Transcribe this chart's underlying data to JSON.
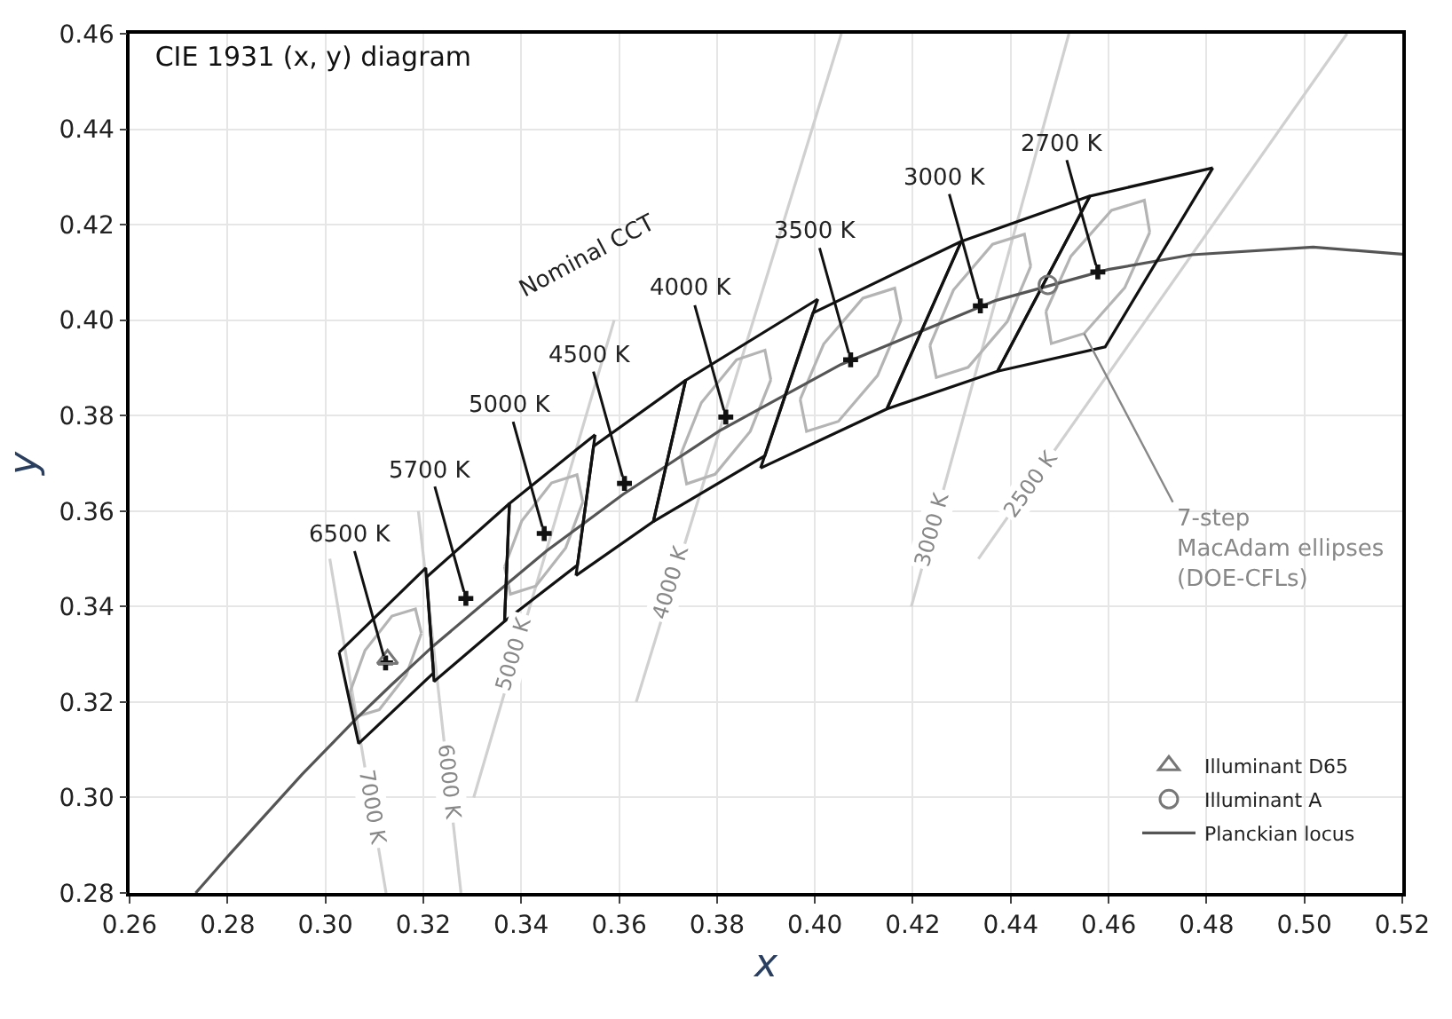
{
  "chart_data": {
    "type": "line",
    "title": "CIE 1931 (x, y) diagram",
    "xlabel": "x",
    "ylabel": "y",
    "xlim": [
      0.26,
      0.52
    ],
    "ylim": [
      0.28,
      0.46
    ],
    "xticks": [
      0.26,
      0.28,
      {
        "value": 0.3,
        "label": "0.30"
      },
      0.32,
      0.34,
      0.36,
      0.38,
      {
        "value": 0.4,
        "label": "0.40"
      },
      0.42,
      0.44,
      0.46,
      0.48,
      {
        "value": 0.5,
        "label": "0.50"
      },
      0.52
    ],
    "yticks": [
      0.28,
      {
        "value": 0.3,
        "label": "0.30"
      },
      0.32,
      0.34,
      0.36,
      0.38,
      {
        "value": 0.4,
        "label": "0.40"
      },
      0.42,
      0.44,
      0.46
    ],
    "grid": true,
    "legend": "bottom right",
    "marker": "none",
    "line_style": "solid",
    "series": [
      {
        "color": "#d0d0d0",
        "x": [
          0.3009,
          0.3124
        ],
        "values": [
          0.35,
          0.28
        ]
      },
      {
        "color": "#d0d0d0",
        "x": [
          0.319,
          0.3277
        ],
        "values": [
          0.36,
          0.28
        ]
      },
      {
        "color": "#d0d0d0",
        "x": [
          0.3303,
          0.359
        ],
        "values": [
          0.3,
          0.4
        ]
      },
      {
        "color": "#d0d0d0",
        "x": [
          0.3635,
          0.4054
        ],
        "values": [
          0.32,
          0.46
        ]
      },
      {
        "color": "#d0d0d0",
        "x": [
          0.4197,
          0.4519
        ],
        "values": [
          0.34,
          0.46
        ]
      },
      {
        "color": "#d0d0d0",
        "x": [
          0.4334,
          0.5087
        ],
        "values": [
          0.35,
          0.46
        ]
      },
      {
        "color": "#b4b4b4",
        "x": [
          0.305,
          0.3081,
          0.3136,
          0.3184,
          0.3196
        ],
        "values": [
          0.322,
          0.3308,
          0.338,
          0.3395,
          0.3344
        ]
      },
      {
        "color": "#b4b4b4",
        "x": [
          0.305,
          0.3062,
          0.311,
          0.3165,
          0.3196
        ],
        "values": [
          0.322,
          0.3169,
          0.3184,
          0.3256,
          0.3344
        ]
      },
      {
        "color": "#b4b4b4",
        "x": [
          0.3366,
          0.3401,
          0.3462,
          0.3514,
          0.3526
        ],
        "values": [
          0.3483,
          0.3579,
          0.3659,
          0.3676,
          0.3619
        ]
      },
      {
        "color": "#b4b4b4",
        "x": [
          0.3366,
          0.3378,
          0.343,
          0.3491,
          0.3526
        ],
        "values": [
          0.3483,
          0.3426,
          0.3443,
          0.3523,
          0.3619
        ]
      },
      {
        "color": "#b4b4b4",
        "x": [
          0.3726,
          0.3768,
          0.384,
          0.3898,
          0.391
        ],
        "values": [
          0.3719,
          0.3827,
          0.3917,
          0.3937,
          0.3875
        ]
      },
      {
        "color": "#b4b4b4",
        "x": [
          0.3726,
          0.3738,
          0.3796,
          0.3868,
          0.391
        ],
        "values": [
          0.3719,
          0.3657,
          0.3677,
          0.3767,
          0.3875
        ]
      },
      {
        "color": "#b4b4b4",
        "x": [
          0.397,
          0.4018,
          0.4098,
          0.4163,
          0.4176
        ],
        "values": [
          0.3834,
          0.395,
          0.4046,
          0.4067,
          0.4
        ]
      },
      {
        "color": "#b4b4b4",
        "x": [
          0.397,
          0.3983,
          0.4048,
          0.4128,
          0.4176
        ],
        "values": [
          0.3834,
          0.3767,
          0.3788,
          0.3884,
          0.4
        ]
      },
      {
        "color": "#b4b4b4",
        "x": [
          0.4235,
          0.4283,
          0.4363,
          0.4428,
          0.4441
        ],
        "values": [
          0.3947,
          0.4063,
          0.4159,
          0.418,
          0.4113
        ]
      },
      {
        "color": "#b4b4b4",
        "x": [
          0.4235,
          0.4248,
          0.4313,
          0.4393,
          0.4441
        ],
        "values": [
          0.3947,
          0.388,
          0.3901,
          0.3997,
          0.4113
        ]
      },
      {
        "color": "#b4b4b4",
        "x": [
          0.4472,
          0.4523,
          0.4606,
          0.4673,
          0.4684
        ],
        "values": [
          0.4018,
          0.4134,
          0.423,
          0.4251,
          0.4184
        ]
      },
      {
        "color": "#b4b4b4",
        "x": [
          0.4472,
          0.4483,
          0.455,
          0.4633,
          0.4684
        ],
        "values": [
          0.4018,
          0.3951,
          0.3972,
          0.4068,
          0.4184
        ]
      },
      {
        "name": "Planckian locus",
        "color": "#555555",
        "x": [
          0.2735,
          0.2807,
          0.2952,
          0.3064,
          0.3135,
          0.3221,
          0.3325,
          0.3451,
          0.3608,
          0.3805,
          0.4053,
          0.4369,
          0.4599,
          0.477,
          0.5018,
          0.52
        ],
        "values": [
          0.28,
          0.2884,
          0.3048,
          0.3166,
          0.3236,
          0.3318,
          0.3408,
          0.3516,
          0.3635,
          0.3768,
          0.3907,
          0.4041,
          0.4106,
          0.4137,
          0.4153,
          0.4138
        ]
      },
      {
        "color": "#111111",
        "x": [
          0.4373,
          0.4562,
          0.4813
        ],
        "values": [
          0.3893,
          0.426,
          0.4319
        ]
      },
      {
        "color": "#111111",
        "x": [
          0.4373,
          0.4593,
          0.4813
        ],
        "values": [
          0.3893,
          0.3944,
          0.4319
        ]
      },
      {
        "color": "#111111",
        "x": [
          0.4147,
          0.4299,
          0.4562
        ],
        "values": [
          0.3814,
          0.4165,
          0.426
        ]
      },
      {
        "color": "#111111",
        "x": [
          0.4147,
          0.4373,
          0.4562
        ],
        "values": [
          0.3814,
          0.3893,
          0.426
        ]
      },
      {
        "color": "#111111",
        "x": [
          0.3889,
          0.3996,
          0.4299
        ],
        "values": [
          0.369,
          0.4015,
          0.4165
        ]
      },
      {
        "color": "#111111",
        "x": [
          0.3889,
          0.4147,
          0.4299
        ],
        "values": [
          0.369,
          0.3814,
          0.4165
        ]
      },
      {
        "color": "#111111",
        "x": [
          0.367,
          0.3736,
          0.4006
        ],
        "values": [
          0.3578,
          0.3874,
          0.4044
        ]
      },
      {
        "color": "#111111",
        "x": [
          0.367,
          0.3898,
          0.4006
        ],
        "values": [
          0.3578,
          0.3716,
          0.4044
        ]
      },
      {
        "color": "#111111",
        "x": [
          0.3512,
          0.3548,
          0.3736
        ],
        "values": [
          0.3465,
          0.3736,
          0.3874
        ]
      },
      {
        "color": "#111111",
        "x": [
          0.3512,
          0.367,
          0.3736
        ],
        "values": [
          0.3465,
          0.3578,
          0.3874
        ]
      },
      {
        "color": "#111111",
        "x": [
          0.3366,
          0.3376,
          0.3551
        ],
        "values": [
          0.3369,
          0.3616,
          0.376
        ]
      },
      {
        "color": "#111111",
        "x": [
          0.3366,
          0.3515,
          0.3551
        ],
        "values": [
          0.3369,
          0.3487,
          0.376
        ]
      },
      {
        "color": "#111111",
        "x": [
          0.3207,
          0.3376
        ],
        "values": [
          0.3462,
          0.3616
        ]
      },
      {
        "color": "#111111",
        "x": [
          0.3207,
          0.3222,
          0.3366,
          0.3376
        ],
        "values": [
          0.3462,
          0.3243,
          0.3369,
          0.3616
        ]
      },
      {
        "color": "#111111",
        "x": [
          0.3028,
          0.3205,
          0.3221
        ],
        "values": [
          0.3304,
          0.3481,
          0.3261
        ]
      },
      {
        "color": "#111111",
        "x": [
          0.3028,
          0.3068,
          0.3221
        ],
        "values": [
          0.3304,
          0.3113,
          0.3261
        ]
      },
      {
        "type": "scatter",
        "color": "#111111",
        "marker": "cross",
        "x": [
          0.4578,
          0.4338,
          0.4073,
          0.3818,
          0.3611,
          0.3447,
          0.3287,
          0.3123
        ],
        "values": [
          0.4101,
          0.403,
          0.3917,
          0.3797,
          0.3658,
          0.3553,
          0.3417,
          0.3282
        ]
      },
      {
        "type": "scatter",
        "name": "Illuminant A",
        "color": "#777777",
        "marker": "circle",
        "x": [
          0.4476
        ],
        "values": [
          0.4074
        ]
      },
      {
        "type": "scatter",
        "name": "Illuminant D65",
        "color": "#777777",
        "marker": "triangle",
        "x": [
          0.3127
        ],
        "values": [
          0.329
        ]
      }
    ],
    "annotations": [
      {
        "text": "6500 K",
        "x": 0.3123,
        "y": 0.3282
      },
      {
        "text": "5700 K",
        "x": 0.3287,
        "y": 0.3417
      },
      {
        "text": "5000 K",
        "x": 0.3447,
        "y": 0.3553
      },
      {
        "text": "4500 K",
        "x": 0.3611,
        "y": 0.3658
      },
      {
        "text": "4000 K",
        "x": 0.3818,
        "y": 0.3797
      },
      {
        "text": "3500 K",
        "x": 0.4073,
        "y": 0.3917
      },
      {
        "text": "3000 K",
        "x": 0.4338,
        "y": 0.403
      },
      {
        "text": "2700 K",
        "x": 0.4578,
        "y": 0.4101
      },
      {
        "text": "7000 K",
        "x": 0.3096,
        "y": 0.2978
      },
      {
        "text": "6000 K",
        "x": 0.3253,
        "y": 0.3034
      },
      {
        "text": "5000 K",
        "x": 0.3385,
        "y": 0.3301
      },
      {
        "text": "4000 K",
        "x": 0.3706,
        "y": 0.3449
      },
      {
        "text": "3000 K",
        "x": 0.424,
        "y": 0.3561
      },
      {
        "text": "2500 K",
        "x": 0.4439,
        "y": 0.3657
      },
      "Nominal CCT",
      {
        "text": "7-step\nMacAdam ellipses\n(DOE-CFLs)",
        "x": 0.455,
        "y": 0.3972
      }
    ]
  }
}
